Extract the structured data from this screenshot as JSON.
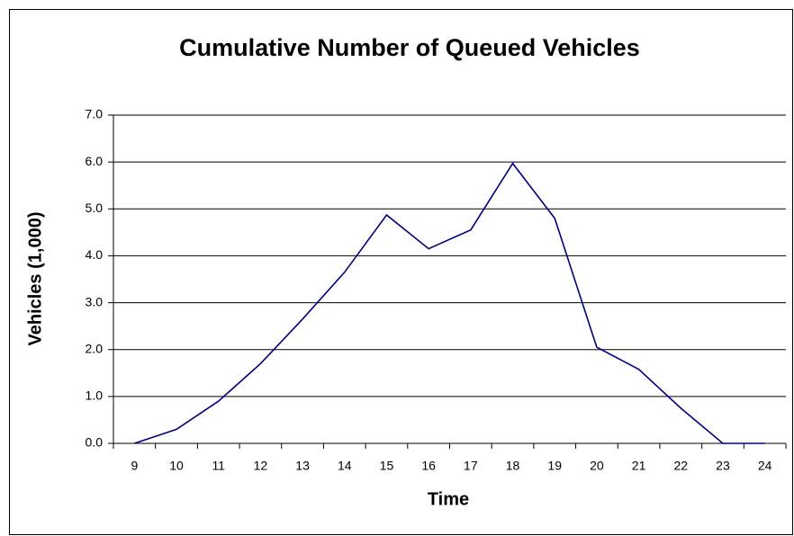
{
  "chart_data": {
    "type": "line",
    "title": "Cumulative Number of Queued Vehicles",
    "x_label": "Time",
    "y_label": "Vehicles (1,000)",
    "categories": [
      "9",
      "10",
      "11",
      "12",
      "13",
      "14",
      "15",
      "16",
      "17",
      "18",
      "19",
      "20",
      "21",
      "22",
      "23",
      "24"
    ],
    "values": [
      0,
      0.3,
      0.9,
      1.7,
      2.65,
      3.65,
      4.87,
      4.15,
      4.55,
      5.97,
      4.8,
      2.05,
      1.58,
      0.75,
      0,
      0
    ],
    "color": "#000080",
    "ylim": [
      0,
      7
    ],
    "yticks": [
      {
        "value": 0,
        "label": "0.0"
      },
      {
        "value": 1,
        "label": "1.0"
      },
      {
        "value": 2,
        "label": "2.0"
      },
      {
        "value": 3,
        "label": "3.0"
      },
      {
        "value": 4,
        "label": "4.0"
      },
      {
        "value": 5,
        "label": "5.0"
      },
      {
        "value": 6,
        "label": "6.0"
      },
      {
        "value": 7,
        "label": "7.0"
      }
    ],
    "grid": true
  }
}
